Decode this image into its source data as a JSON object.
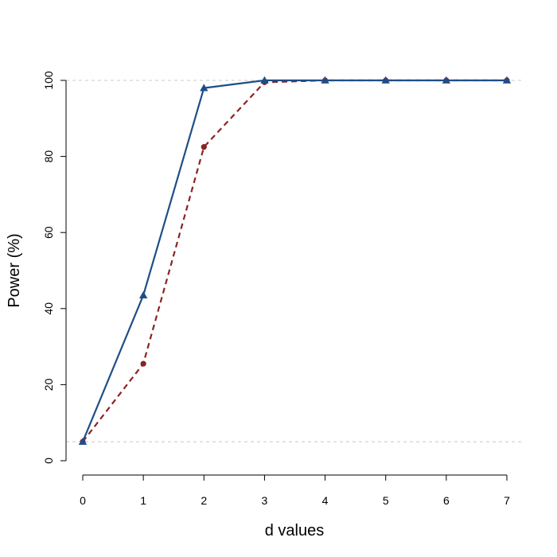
{
  "chart_data": {
    "type": "line",
    "x": [
      0,
      1,
      2,
      3,
      4,
      5,
      6,
      7
    ],
    "xlabel": "d values",
    "ylabel": "Power (%)",
    "xlim": [
      0,
      7
    ],
    "ylim": [
      0,
      100
    ],
    "x_ticks": [
      0,
      1,
      2,
      3,
      4,
      5,
      6,
      7
    ],
    "y_ticks": [
      0,
      20,
      40,
      60,
      80,
      100
    ],
    "reference_lines": [
      100,
      5
    ],
    "grid": false,
    "series": [
      {
        "color": "#1f4e86",
        "line_style": "solid",
        "marker": "triangle",
        "values": [
          5,
          43.5,
          98,
          100,
          100,
          100,
          100,
          100
        ]
      },
      {
        "color": "#8b2323",
        "line_style": "dashed",
        "marker": "circle",
        "values": [
          5,
          25.5,
          82.5,
          99.5,
          100,
          100,
          100,
          100
        ]
      }
    ]
  }
}
